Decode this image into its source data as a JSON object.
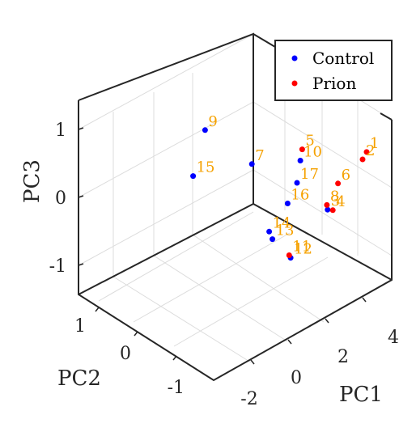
{
  "chart_data": {
    "type": "scatter",
    "title": "",
    "xlabel": "PC1",
    "ylabel": "PC2",
    "zlabel": "PC3",
    "xlim": [
      -3,
      5
    ],
    "ylim": [
      -2,
      1.6
    ],
    "zlim": [
      -1.4,
      1.4
    ],
    "xticks": [
      "-2",
      "0",
      "2",
      "4"
    ],
    "yticks": [
      "1",
      "0",
      "-1"
    ],
    "zticks": [
      "1",
      "0",
      "-1"
    ],
    "grid": true,
    "legend_position": "top-right",
    "series": [
      {
        "name": "Control",
        "color": "#0000ff",
        "points": [
          {
            "label": "3",
            "x": 2.6,
            "y": 0.4,
            "z": -0.3
          },
          {
            "label": "7",
            "x": 1.4,
            "y": -0.8,
            "z": 0.1
          },
          {
            "label": "9",
            "x": 1.4,
            "y": -1.85,
            "z": 0.2
          },
          {
            "label": "10",
            "x": -0.3,
            "y": 1.0,
            "z": 1.1
          },
          {
            "label": "12",
            "x": -1.3,
            "y": 1.2,
            "z": -0.1
          },
          {
            "label": "13",
            "x": 0.35,
            "y": 0.1,
            "z": -0.5
          },
          {
            "label": "14",
            "x": 0.3,
            "y": 0.05,
            "z": -0.4
          },
          {
            "label": "15",
            "x": -1.4,
            "y": -0.95,
            "z": 0.3
          },
          {
            "label": "16",
            "x": -1.7,
            "y": 1.3,
            "z": 0.8
          },
          {
            "label": "17",
            "x": 0.0,
            "y": 0.8,
            "z": 0.65
          }
        ]
      },
      {
        "name": "Prion",
        "color": "#ff0000",
        "points": [
          {
            "label": "1",
            "x": 3.5,
            "y": 0.9,
            "z": 0.6
          },
          {
            "label": "2",
            "x": 4.0,
            "y": 0.6,
            "z": 0.3
          },
          {
            "label": "4",
            "x": 2.4,
            "y": 0.6,
            "z": -0.2
          },
          {
            "label": "5",
            "x": -0.2,
            "y": 1.0,
            "z": 1.25
          },
          {
            "label": "6",
            "x": 2.2,
            "y": 0.8,
            "z": 0.3
          },
          {
            "label": "8",
            "x": 2.8,
            "y": 0.3,
            "z": -0.3
          },
          {
            "label": "11",
            "x": -0.9,
            "y": 1.0,
            "z": -0.2
          }
        ]
      }
    ]
  }
}
